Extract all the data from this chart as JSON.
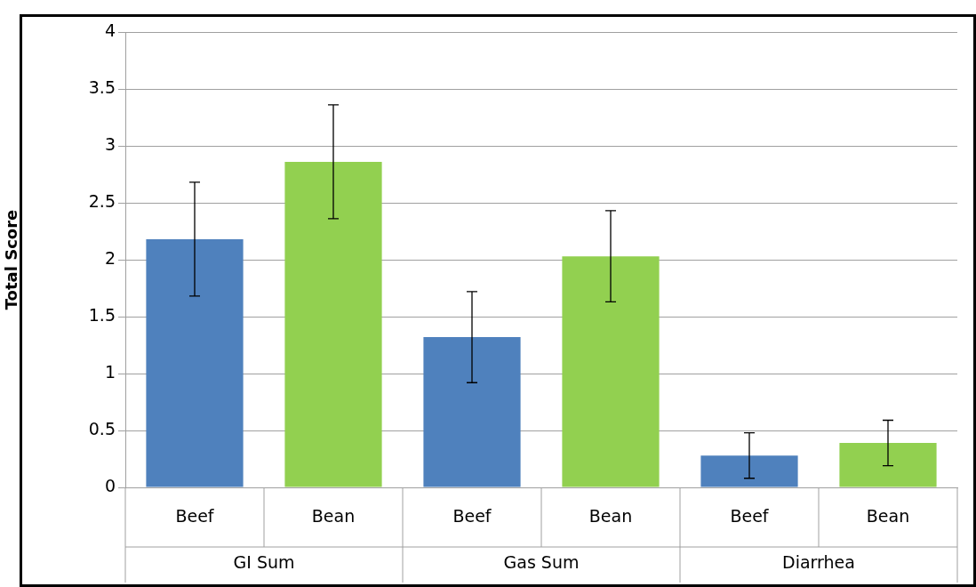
{
  "chart_data": {
    "type": "bar",
    "ylabel": "Total Score",
    "categories": [
      "GI Sum",
      "Gas Sum",
      "Diarrhea"
    ],
    "series": [
      {
        "name": "Beef",
        "color": "#4f81bd",
        "values": [
          2.18,
          1.32,
          0.28
        ],
        "errors": [
          0.5,
          0.4,
          0.2
        ]
      },
      {
        "name": "Bean",
        "color": "#92d050",
        "values": [
          2.86,
          2.03,
          0.39
        ],
        "errors": [
          0.5,
          0.4,
          0.2
        ]
      }
    ],
    "ylim": [
      0,
      4
    ],
    "yticks": [
      0,
      0.5,
      1,
      1.5,
      2,
      2.5,
      3,
      3.5,
      4
    ],
    "grid": "y",
    "legend": false
  }
}
